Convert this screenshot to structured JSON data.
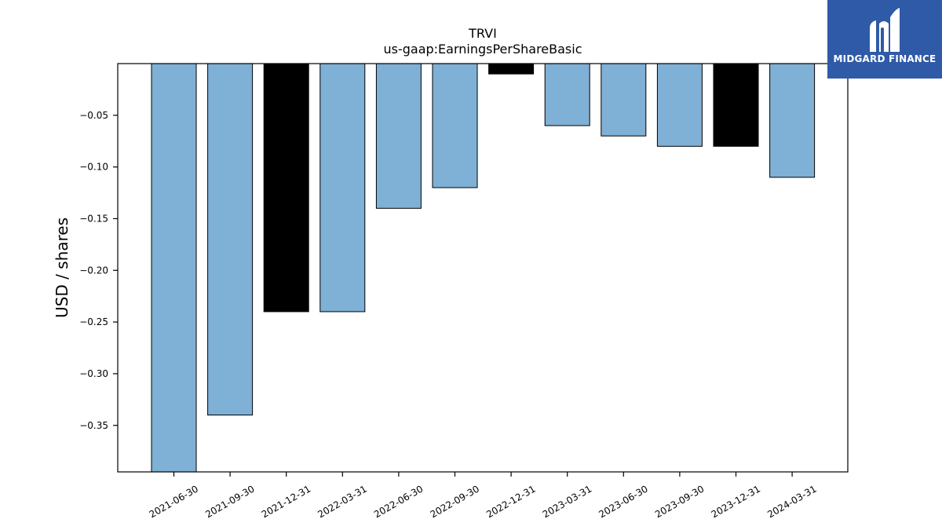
{
  "chart_data": {
    "type": "bar",
    "title": "TRVI",
    "subtitle": "us-gaap:EarningsPerShareBasic",
    "ylabel": "USD / shares",
    "xlabel": "",
    "categories": [
      "2021-06-30",
      "2021-09-30",
      "2021-12-31",
      "2022-03-31",
      "2022-06-30",
      "2022-09-30",
      "2022-12-31",
      "2023-03-31",
      "2023-06-30",
      "2023-09-30",
      "2023-12-31",
      "2024-03-31"
    ],
    "values": [
      -0.4,
      -0.34,
      -0.24,
      -0.24,
      -0.14,
      -0.12,
      -0.01,
      -0.06,
      -0.07,
      -0.08,
      -0.08,
      -0.11
    ],
    "bar_colors": [
      "#7fb0d5",
      "#7fb0d5",
      "#000000",
      "#7fb0d5",
      "#7fb0d5",
      "#7fb0d5",
      "#000000",
      "#7fb0d5",
      "#7fb0d5",
      "#7fb0d5",
      "#000000",
      "#7fb0d5"
    ],
    "ylim": [
      -0.395,
      0.0
    ],
    "yticks": [
      -0.05,
      -0.1,
      -0.15,
      -0.2,
      -0.25,
      -0.3,
      -0.35
    ],
    "ytick_labels": [
      "−0.05",
      "−0.10",
      "−0.15",
      "−0.20",
      "−0.25",
      "−0.30",
      "−0.35"
    ],
    "grid": false
  },
  "logo": {
    "text": "MIDGARD FINANCE",
    "background": "#2f5aa8"
  }
}
